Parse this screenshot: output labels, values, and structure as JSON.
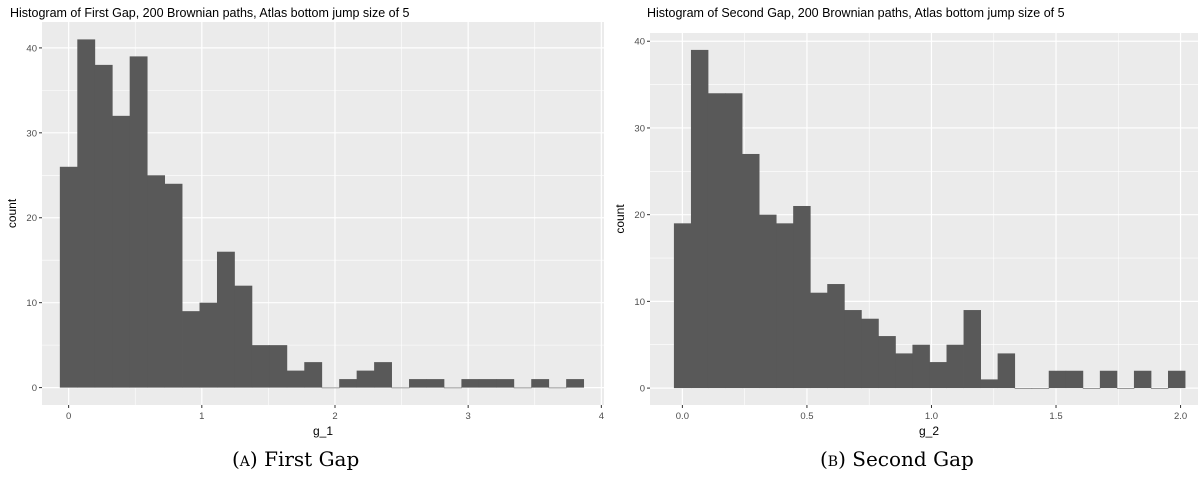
{
  "panels": [
    {
      "title": "Histogram of First Gap, 200 Brownian paths, Atlas bottom jump size of 5",
      "caption_label": "(a)",
      "caption_text": "First Gap"
    },
    {
      "title": "Histogram of Second Gap, 200 Brownian paths, Atlas bottom jump size of 5",
      "caption_label": "(b)",
      "caption_text": "Second Gap"
    }
  ],
  "colors": {
    "panel_bg": "#EBEBEB",
    "grid": "#FFFFFF",
    "bar": "#595959",
    "axis_text": "#4D4D4D"
  },
  "chart_data": [
    {
      "type": "bar",
      "title": "Histogram of First Gap, 200 Brownian paths, Atlas bottom jump size of 5",
      "xlabel": "g_1",
      "ylabel": "count",
      "xlim": [
        -0.2,
        4.02
      ],
      "ylim": [
        -2.05,
        43.05
      ],
      "xticks": [
        0,
        1,
        2,
        3,
        4
      ],
      "yticks": [
        0,
        10,
        20,
        30,
        40
      ],
      "bin_start": -0.066,
      "bin_width": 0.1311,
      "values": [
        26,
        41,
        38,
        32,
        39,
        25,
        24,
        9,
        10,
        16,
        12,
        5,
        5,
        2,
        3,
        0,
        1,
        2,
        3,
        0,
        1,
        1,
        0,
        1,
        1,
        1,
        0,
        1,
        0,
        1
      ],
      "grid": true
    },
    {
      "type": "bar",
      "title": "Histogram of Second Gap, 200 Brownian paths, Atlas bottom jump size of 5",
      "xlabel": "g_2",
      "ylabel": "count",
      "xlim": [
        -0.13,
        2.07
      ],
      "ylim": [
        -1.95,
        40.95
      ],
      "xticks": [
        0.0,
        0.5,
        1.0,
        1.5,
        2.0
      ],
      "yticks": [
        0,
        10,
        20,
        30,
        40
      ],
      "xticklabels": [
        "0.0",
        "0.5",
        "1.0",
        "1.5",
        "2.0"
      ],
      "bin_start": -0.034,
      "bin_width": 0.0684,
      "values": [
        19,
        39,
        34,
        34,
        27,
        20,
        19,
        21,
        11,
        12,
        9,
        8,
        6,
        4,
        5,
        3,
        5,
        9,
        1,
        4,
        0,
        0,
        2,
        2,
        0,
        2,
        0,
        2,
        0,
        2
      ],
      "grid": true
    }
  ]
}
